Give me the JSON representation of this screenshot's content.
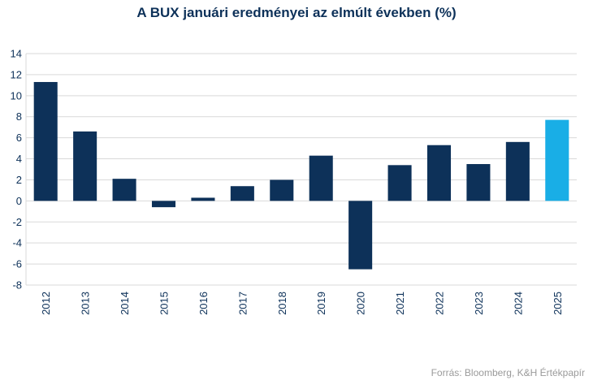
{
  "chart_data": {
    "type": "bar",
    "title": "A BUX januári eredményei az elmúlt években (%)",
    "categories": [
      "2012",
      "2013",
      "2014",
      "2015",
      "2016",
      "2017",
      "2018",
      "2019",
      "2020",
      "2021",
      "2022",
      "2023",
      "2024",
      "2025"
    ],
    "values": [
      11.3,
      6.6,
      2.1,
      -0.6,
      0.3,
      1.4,
      2.0,
      4.3,
      -6.5,
      3.4,
      5.3,
      3.5,
      5.6,
      7.7
    ],
    "highlight_category": "2025",
    "xlabel": "",
    "ylabel": "",
    "ylim": [
      -8,
      14
    ],
    "yticks": [
      14,
      12,
      10,
      8,
      6,
      4,
      2,
      0,
      -2,
      -4,
      -6,
      -8
    ],
    "grid": true,
    "legend": "none",
    "colors": {
      "bar": "#0d3159",
      "highlight": "#19aee6",
      "grid": "#d9d9d9",
      "axis_text": "#0d3159"
    }
  },
  "source": "Forrás: Bloomberg, K&H Értékpapír"
}
